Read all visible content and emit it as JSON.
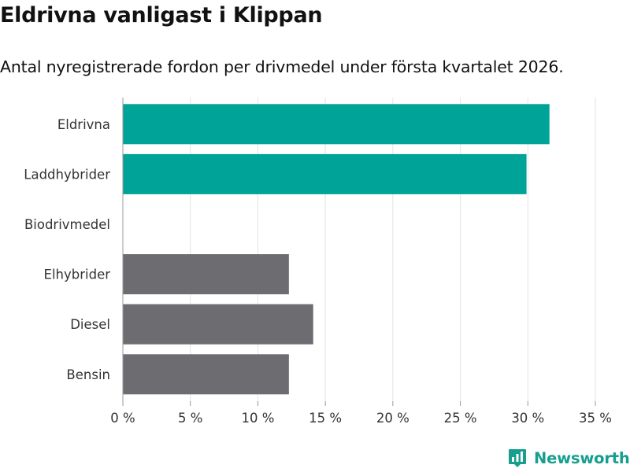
{
  "title": "Eldrivna vanligast i Klippan",
  "subtitle": "Antal nyregistrerade fordon per drivmedel under första kvartalet 2026.",
  "brand": {
    "name": "Newsworthy",
    "icon": "newsworthy-logo-icon"
  },
  "colors": {
    "highlight": "#00a398",
    "default": "#6d6c71",
    "grid": "#e3e3e3",
    "text": "#333333",
    "brand": "#179e8e"
  },
  "chart_data": {
    "type": "bar",
    "orientation": "horizontal",
    "title": "Eldrivna vanligast i Klippan",
    "subtitle": "Antal nyregistrerade fordon per drivmedel under första kvartalet 2026.",
    "xlabel": "",
    "ylabel": "",
    "xlim": [
      0,
      35
    ],
    "ticks": [
      0,
      5,
      10,
      15,
      20,
      25,
      30,
      35
    ],
    "tick_labels": [
      "0 %",
      "5 %",
      "10 %",
      "15 %",
      "20 %",
      "25 %",
      "30 %",
      "35 %"
    ],
    "grid": true,
    "categories": [
      "Eldrivna",
      "Laddhybrider",
      "Biodrivmedel",
      "Elhybrider",
      "Diesel",
      "Bensin"
    ],
    "values": [
      31.6,
      29.9,
      0,
      12.3,
      14.1,
      12.3
    ],
    "highlighted": [
      "Eldrivna",
      "Laddhybrider"
    ]
  }
}
